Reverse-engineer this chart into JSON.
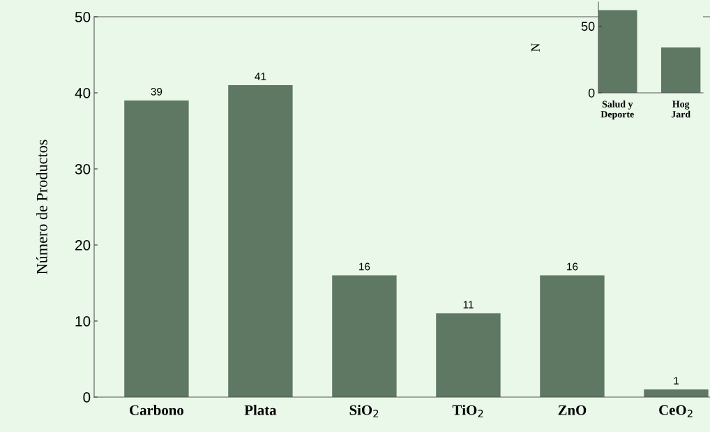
{
  "chart_data": [
    {
      "type": "bar",
      "ylabel": "Número de Productos",
      "categories": [
        "Carbono",
        "Plata",
        "SiO$_{2}$",
        "TiO$_{2}$",
        "ZnO",
        "CeO$_{2}$"
      ],
      "values": [
        39,
        41,
        16,
        11,
        16,
        1
      ],
      "color": "#5f7863",
      "ylim": [
        0,
        50
      ],
      "yticks": [
        0,
        10,
        20,
        30,
        40,
        50
      ],
      "data_labels": true,
      "grid": false
    },
    {
      "type": "bar",
      "ylabel": "N",
      "categories": [
        "Salud y\nDeporte",
        "Hog\nJard"
      ],
      "values": [
        62,
        34
      ],
      "color": "#5f7863",
      "ylim": [
        0,
        68
      ],
      "yticks": [
        0,
        50
      ],
      "grid": false
    }
  ]
}
